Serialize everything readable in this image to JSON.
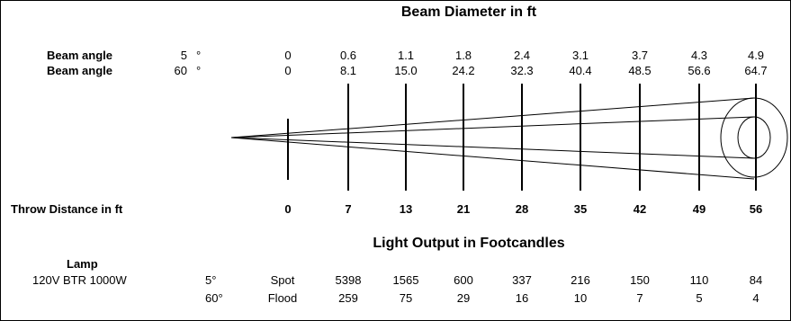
{
  "beam_header": "Beam Diameter in ft",
  "beam_rows": [
    {
      "label": "Beam angle",
      "angle": "5",
      "deg": "°",
      "values": [
        "0",
        "0.6",
        "1.1",
        "1.8",
        "2.4",
        "3.1",
        "3.7",
        "4.3",
        "4.9"
      ]
    },
    {
      "label": "Beam angle",
      "angle": "60",
      "deg": "°",
      "values": [
        "0",
        "8.1",
        "15.0",
        "24.2",
        "32.3",
        "40.4",
        "48.5",
        "56.6",
        "64.7"
      ]
    }
  ],
  "throw": {
    "label": "Throw Distance in ft",
    "values": [
      "0",
      "7",
      "13",
      "21",
      "28",
      "35",
      "42",
      "49",
      "56"
    ]
  },
  "output_header": "Light Output in Footcandles",
  "lamp": {
    "header": "Lamp",
    "name": "120V BTR 1000W",
    "rows": [
      {
        "angle": "5°",
        "mode": "Spot",
        "values": [
          "5398",
          "1565",
          "600",
          "337",
          "216",
          "150",
          "110",
          "84"
        ]
      },
      {
        "angle": "60°",
        "mode": "Flood",
        "values": [
          "259",
          "75",
          "29",
          "16",
          "10",
          "7",
          "5",
          "4"
        ]
      }
    ]
  }
}
